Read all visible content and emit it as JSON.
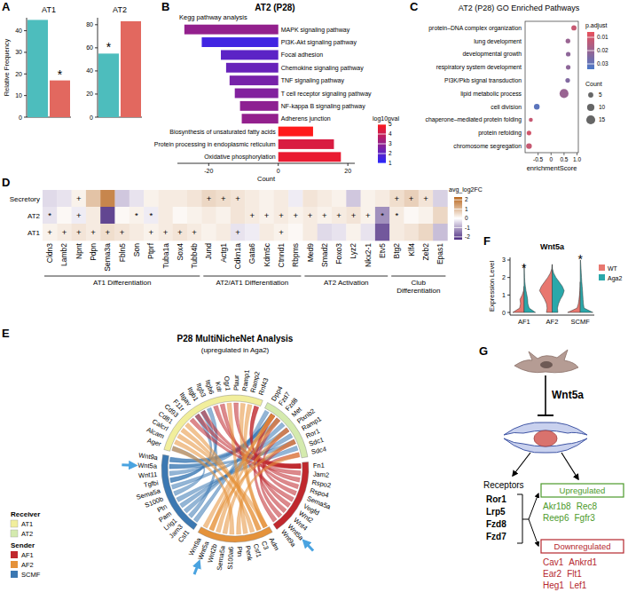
{
  "chart_data": [
    {
      "panel": "A",
      "type": "bar",
      "title": "AT1",
      "ylabel": "Relative Frequency",
      "categories": [
        null,
        null
      ],
      "values": [
        45,
        17
      ],
      "colors": [
        "#4dbdbd",
        "#e2685f"
      ],
      "annotations": [
        null,
        "*"
      ],
      "ylim": [
        0,
        46
      ],
      "yticks": [
        0,
        10,
        20,
        30,
        40
      ],
      "tick_labels": "y"
    },
    {
      "type": "bar",
      "title": "AT2",
      "categories": [
        null,
        null
      ],
      "values": [
        55,
        83
      ],
      "colors": [
        "#4dbdbd",
        "#e2685f"
      ],
      "annotations": [
        "*",
        null
      ],
      "ylim": [
        0,
        86
      ],
      "yticks": [
        0,
        20,
        40,
        60,
        80
      ],
      "tick_labels": "y"
    },
    {
      "panel": "B",
      "type": "bar",
      "orientation": "horizontal",
      "title": "AT2 (P28)",
      "subtitle": "Kegg pathway analysis",
      "xlabel": "Count",
      "categories": [
        "MAPK signaling pathway",
        "PI3K-Akt signaling pathway",
        "Focal adhesion",
        "Chemokine signaling pathway",
        "TNF signaling pathway",
        "T cell receptor signaling pathway",
        "NF-kappa B signaling pathway",
        "Adherens junction",
        "Biosynthesis of unsaturated fatty acids",
        "Protein processing in endoplasmic reticulum",
        "Oxidative phosphorylation"
      ],
      "values": [
        -27,
        -22,
        -16.5,
        -15,
        -14,
        -12.5,
        -11,
        -10.5,
        10,
        16,
        18
      ],
      "log10pval": [
        3,
        1.5,
        2,
        2.2,
        2.5,
        2.7,
        2.9,
        3,
        5,
        4.3,
        4.6
      ],
      "xlim": [
        -29,
        22
      ],
      "xticks": [
        -20,
        0,
        20
      ],
      "colorbar": {
        "title": "log10pval",
        "range": [
          1,
          5
        ],
        "ticks": [
          1,
          2,
          3,
          4,
          5
        ],
        "colors": [
          "#2626ff",
          "#ff1a1a"
        ]
      }
    },
    {
      "panel": "C",
      "type": "dot",
      "title": "AT2 (P28) GO Enriched Pathways",
      "xlabel": "enrichmentScore",
      "categories": [
        "protein–DNA complex organization",
        "lung development",
        "developmental growth",
        "respiratory system development",
        "PI3K/Pkb signal transduction",
        "lipid metabolic process",
        "cell division",
        "chaperone–mediated protein folding",
        "protein refolding",
        "chromosome segregation"
      ],
      "values": [
        0.88,
        0.65,
        0.66,
        0.66,
        0.64,
        0.5,
        -0.55,
        -0.78,
        -0.85,
        -0.85
      ],
      "sizes": [
        5,
        4,
        4,
        4,
        4,
        15,
        6,
        3,
        4,
        6
      ],
      "p_adjust": [
        0.012,
        0.02,
        0.022,
        0.022,
        0.024,
        0.02,
        0.031,
        0.012,
        0.01,
        0.012
      ],
      "xlim": [
        -1.0,
        1.05
      ],
      "xticks": [
        -0.5,
        0,
        0.5,
        {
          "value": 1,
          "label": "1.0"
        }
      ],
      "colorbar": {
        "title": "p.adjust",
        "range": [
          0.006,
          0.034
        ],
        "ticks": [
          0.01,
          0.02,
          0.03
        ],
        "colors": [
          "#e8505b",
          "#4a78c8"
        ]
      },
      "size_legend": {
        "title": "Count",
        "values": [
          5,
          10,
          15
        ]
      }
    },
    {
      "panel": "D",
      "type": "heatmap",
      "rows": [
        "Secretory",
        "AT2",
        "AT1"
      ],
      "columns": [
        "Cldn3",
        "Lamb2",
        "Npnt",
        "Pdpn",
        "Sema3a",
        "Fbln5",
        "Son",
        "Ptprf",
        "Tuba1a",
        "Sox4",
        "Tubb4b",
        "Jund",
        "Actg1",
        "Cdkn1a",
        "Gata6",
        "Kdm5c",
        "Ctnnd1",
        "Rbpms",
        "Med9",
        "Smad2",
        "Foxo3",
        "Lyz2",
        "Nkx2-1",
        "Etv5",
        "Btg2",
        "Klf4",
        "Zeb2",
        "Epas1"
      ],
      "cells": [
        [
          -0.4,
          -0.3,
          0.2,
          0.9,
          1.8,
          -0.6,
          -0.3,
          0.2,
          0.3,
          0.3,
          0.4,
          0.6,
          0.5,
          0.4,
          0.3,
          0.2,
          0.3,
          -0.2,
          0.4,
          0.3,
          0.2,
          -0.6,
          0.2,
          0.3,
          0.5,
          0.7,
          0.4,
          -0.5
        ],
        [
          -0.3,
          0.1,
          -0.2,
          0.3,
          -2,
          0.1,
          0.2,
          -0.2,
          0.3,
          0.1,
          0.2,
          0.3,
          0.2,
          0.4,
          0.3,
          0.2,
          0.3,
          0.2,
          0.3,
          0.2,
          0.3,
          0.4,
          0.2,
          -1.2,
          0.3,
          0.1,
          0.2,
          0.6
        ],
        [
          0.2,
          0.3,
          0.4,
          0.3,
          0.5,
          0.4,
          0.3,
          0.2,
          0.3,
          0.4,
          0.3,
          0.2,
          0.3,
          -0.3,
          -0.2,
          0.3,
          0.2,
          0.1,
          0.3,
          -0.4,
          -0.3,
          0.2,
          -0.3,
          -1.8,
          0.3,
          0.4,
          0.6,
          -0.7
        ]
      ],
      "cell_labels": [
        [
          null,
          null,
          "+",
          null,
          null,
          null,
          null,
          null,
          null,
          null,
          null,
          "+",
          "+",
          "+",
          null,
          null,
          null,
          null,
          null,
          null,
          null,
          null,
          null,
          null,
          "+",
          "+",
          "+",
          null
        ],
        [
          "*",
          null,
          "+",
          null,
          null,
          null,
          "*",
          "*",
          null,
          null,
          null,
          null,
          null,
          null,
          "+",
          "+",
          "+",
          "+",
          "+",
          "+",
          "+",
          "+",
          "+",
          "*",
          "*",
          null,
          null,
          null
        ],
        [
          "+",
          "+",
          "+",
          "+",
          "+",
          "+",
          null,
          "+",
          "+",
          "+",
          "+",
          null,
          null,
          "+",
          null,
          null,
          "+",
          null,
          null,
          null,
          null,
          null,
          null,
          null,
          null,
          null,
          null,
          null
        ]
      ],
      "column_groups": [
        {
          "label": "AT1 Differentiation",
          "size": 11
        },
        {
          "label": "AT2/AT1 Differentiation",
          "size": 7
        },
        {
          "label": "AT2 Activation",
          "size": 6
        },
        {
          "label": "Club Differentiation",
          "size": 4
        }
      ],
      "colorbar": {
        "title": "avg_log2FC",
        "range": [
          -2.3,
          2.3
        ],
        "ticks": [
          -2,
          -1,
          0,
          1,
          2
        ],
        "colors": [
          "#4b2a80",
          "#ffffff",
          "#b8651b"
        ]
      }
    },
    {
      "panel": "F",
      "type": "violin",
      "title": "Wnt5a",
      "ylabel": "Expression Level",
      "categories": [
        "AF1",
        "AF2",
        "SCMF"
      ],
      "y_grid": [
        0,
        0.25,
        0.5,
        0.75,
        1,
        1.25,
        1.5,
        1.75,
        2,
        2.25,
        2.5,
        2.75,
        3
      ],
      "series": [
        {
          "name": "WT",
          "color": "#e8776f",
          "density": [
            [
              0.9,
              0.35,
              0.28,
              0.32,
              0.15,
              0.04,
              0,
              0,
              0,
              0,
              0,
              0,
              0
            ],
            [
              0.45,
              0.4,
              0.45,
              0.6,
              0.8,
              1.0,
              0.85,
              0.6,
              0.35,
              0.15,
              0.03,
              0,
              0
            ],
            [
              1.0,
              0.25,
              0.15,
              0.1,
              0.06,
              0.03,
              0.01,
              0,
              0,
              0,
              0,
              0,
              0
            ]
          ]
        },
        {
          "name": "Aga2",
          "color": "#2aa8aa",
          "density": [
            [
              0.9,
              0.4,
              0.3,
              0.28,
              0.22,
              0.15,
              0.1,
              0.06,
              0.04,
              0.03,
              0.02,
              0,
              0
            ],
            [
              0.45,
              0.42,
              0.5,
              0.65,
              0.85,
              0.95,
              0.8,
              0.55,
              0.3,
              0.12,
              0.02,
              0,
              0
            ],
            [
              1.0,
              0.3,
              0.25,
              0.22,
              0.2,
              0.18,
              0.15,
              0.12,
              0.1,
              0.08,
              0.06,
              0.04,
              0.02
            ]
          ]
        }
      ],
      "annotations": [
        "*",
        null,
        "*"
      ],
      "ylim": [
        -0.15,
        3.15
      ],
      "yticks": [
        0,
        1,
        2,
        3
      ],
      "legend": "right"
    }
  ],
  "chord_diagram": {
    "panel": "E",
    "title": "P28 MultiNicheNet Analysis",
    "subtitle": "(upregulated in Aga2)",
    "receiver_title": "Receiver",
    "sender_title": "Sender",
    "highlight": "Wnt5a",
    "receivers": [
      {
        "name": "AT1",
        "color": "#f1ee9c",
        "items": [
          "Ager",
          "Alcam",
          "Calcrl",
          "Cd81",
          "Cd93",
          "F11r",
          "Itgav",
          "Itgb1",
          "Itgb3",
          "Itgb6",
          "Kdr",
          "Ogr1",
          "Plaur",
          "Ramp1",
          "Ramp2",
          "Rnf43"
        ]
      },
      {
        "name": "AT2",
        "color": "#d4eaae",
        "items": [
          "Dpp4",
          "Fzd7",
          "Fzd8",
          "Met",
          "Plxnb2",
          "Ramp1",
          "Ror1",
          "Sdc1",
          "Sdc4"
        ]
      }
    ],
    "senders": [
      {
        "name": "AF1",
        "color": "#c0282d",
        "items": [
          "Fn1",
          "Jam2",
          "Rspo2",
          "Rspo4",
          "Sema5a",
          "Vegfd",
          "Wnt2",
          "Wnt4",
          "Wnt5a",
          "Wnt9a"
        ]
      },
      {
        "name": "AF2",
        "color": "#e5923a",
        "items": [
          "Adm",
          "C3",
          "Csf1",
          "Penk",
          "Ptn",
          "S100a6",
          "Sema5a",
          "Wnt2b",
          "Wnt5a",
          "Wnt9a"
        ]
      },
      {
        "name": "SCMF",
        "color": "#3b78b2",
        "items": [
          "Csf1",
          "Jam3",
          "Lrig1",
          "Pam",
          "Ptn",
          "S100b",
          "Sema5a",
          "Tgfbi",
          "Wnt11",
          "Wnt5a",
          "Wnt9a"
        ]
      }
    ],
    "links": [
      [
        "SCMF",
        "Wnt9a",
        "AT2",
        "Fzd7"
      ],
      [
        "SCMF",
        "Wnt9a",
        "AT2",
        "Fzd8"
      ],
      [
        "SCMF",
        "Wnt5a",
        "AT2",
        "Ror1"
      ],
      [
        "SCMF",
        "Wnt5a",
        "AT2",
        "Fzd7"
      ],
      [
        "SCMF",
        "Wnt11",
        "AT2",
        "Fzd7"
      ],
      [
        "SCMF",
        "Tgfbi",
        "AT1",
        "Itgav"
      ],
      [
        "SCMF",
        "Tgfbi",
        "AT1",
        "Itgb3"
      ],
      [
        "SCMF",
        "Sema5a",
        "AT2",
        "Plxnb2"
      ],
      [
        "SCMF",
        "S100b",
        "AT1",
        "Ager"
      ],
      [
        "SCMF",
        "Ptn",
        "AT2",
        "Sdc1"
      ],
      [
        "SCMF",
        "Pam",
        "AT2",
        "Ramp1"
      ],
      [
        "SCMF",
        "Lrig1",
        "AT2",
        "Met"
      ],
      [
        "SCMF",
        "Jam3",
        "AT1",
        "Itgb1"
      ],
      [
        "SCMF",
        "Csf1",
        "AT2",
        "Dpp4"
      ],
      [
        "AF1",
        "Fn1",
        "AT1",
        "Itgav"
      ],
      [
        "AF1",
        "Fn1",
        "AT1",
        "Itgb1"
      ],
      [
        "AF1",
        "Fn1",
        "AT1",
        "Itgb6"
      ],
      [
        "AF1",
        "Fn1",
        "AT1",
        "Plaur"
      ],
      [
        "AF1",
        "Fn1",
        "AT2",
        "Sdc4"
      ],
      [
        "AF1",
        "Jam2",
        "AT1",
        "F11r"
      ],
      [
        "AF1",
        "Rspo2",
        "AT1",
        "Rnf43"
      ],
      [
        "AF1",
        "Rspo4",
        "AT1",
        "Rnf43"
      ],
      [
        "AF1",
        "Sema5a",
        "AT2",
        "Plxnb2"
      ],
      [
        "AF1",
        "Vegfd",
        "AT1",
        "Kdr"
      ],
      [
        "AF1",
        "Wnt2",
        "AT2",
        "Fzd7"
      ],
      [
        "AF1",
        "Wnt4",
        "AT2",
        "Fzd8"
      ],
      [
        "AF1",
        "Wnt5a",
        "AT2",
        "Ror1"
      ],
      [
        "AF1",
        "Wnt9a",
        "AT2",
        "Fzd7"
      ],
      [
        "AF2",
        "Adm",
        "AT1",
        "Calcrl"
      ],
      [
        "AF2",
        "Adm",
        "AT1",
        "Ramp2"
      ],
      [
        "AF2",
        "Adm",
        "AT1",
        "Ramp1"
      ],
      [
        "AF2",
        "C3",
        "AT1",
        "Cd81"
      ],
      [
        "AF2",
        "Csf1",
        "AT1",
        "Alcam"
      ],
      [
        "AF2",
        "Penk",
        "AT1",
        "Ogr1"
      ],
      [
        "AF2",
        "Ptn",
        "AT2",
        "Sdc4"
      ],
      [
        "AF2",
        "S100a6",
        "AT1",
        "Ager"
      ],
      [
        "AF2",
        "Sema5a",
        "AT2",
        "Plxnb2"
      ],
      [
        "AF2",
        "Wnt2b",
        "AT2",
        "Fzd8"
      ],
      [
        "AF2",
        "Wnt5a",
        "AT2",
        "Ror1"
      ],
      [
        "AF2",
        "Wnt5a",
        "AT2",
        "Fzd7"
      ],
      [
        "AF2",
        "Wnt9a",
        "AT2",
        "Fzd7"
      ],
      [
        "AF2",
        "C3",
        "AT1",
        "Cd93"
      ]
    ]
  },
  "schematic": {
    "panel": "G",
    "ligand": "Wnt5a",
    "receptors_title": "Receptors",
    "receptors": [
      "Ror1",
      "Lrp5",
      "Fzd8",
      "Fzd7"
    ],
    "upregulated": {
      "title": "Upregulated",
      "genes": [
        "Akr1b8",
        "Rec8",
        "Reep6",
        "Fgfr3"
      ]
    },
    "downregulated": {
      "title": "Downregulated",
      "genes": [
        "Cav1",
        "Ankrd1",
        "Ear2",
        "Flt1",
        "Heg1",
        "Lef1"
      ]
    }
  }
}
